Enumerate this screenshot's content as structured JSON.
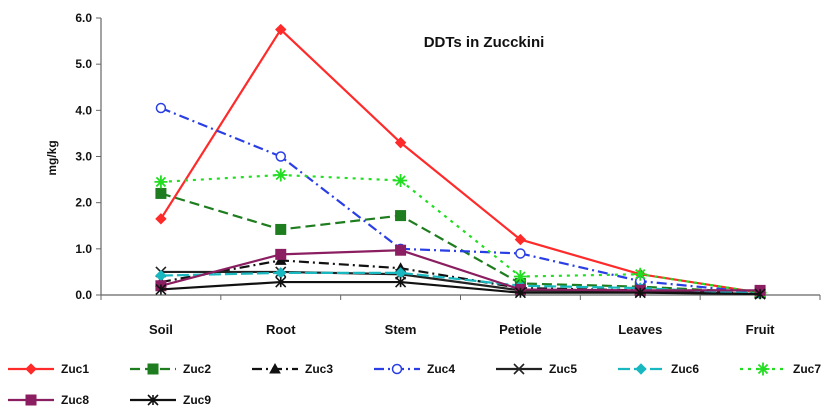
{
  "chart_data": {
    "type": "line",
    "title": "DDTs in Zucckini",
    "xlabel": "",
    "ylabel": "mg/kg",
    "ylim": [
      0,
      6
    ],
    "yticks": [
      "0.0",
      "1.0",
      "2.0",
      "3.0",
      "4.0",
      "5.0",
      "6.0"
    ],
    "categories": [
      "Soil",
      "Root",
      "Stem",
      "Petiole",
      "Leaves",
      "Fruit"
    ],
    "grid": false,
    "legend": "bottom",
    "series": [
      {
        "name": "Zuc1",
        "color": "#ff2a2a",
        "dash": "",
        "marker": "diamond",
        "values": [
          1.65,
          5.75,
          3.3,
          1.2,
          0.45,
          0.05
        ]
      },
      {
        "name": "Zuc2",
        "color": "#1e7d1e",
        "dash": "10,5",
        "marker": "square",
        "values": [
          2.2,
          1.42,
          1.72,
          0.25,
          0.18,
          0.05
        ]
      },
      {
        "name": "Zuc3",
        "color": "#111111",
        "dash": "10,4,2,4",
        "marker": "triangle",
        "values": [
          0.28,
          0.75,
          0.58,
          0.15,
          0.1,
          0.03
        ]
      },
      {
        "name": "Zuc4",
        "color": "#2a3ee6",
        "dash": "10,4,2,4",
        "marker": "circle",
        "values": [
          4.05,
          3.0,
          1.0,
          0.9,
          0.3,
          0.05
        ]
      },
      {
        "name": "Zuc5",
        "color": "#222222",
        "dash": "",
        "marker": "x",
        "values": [
          0.5,
          0.5,
          0.45,
          0.1,
          0.08,
          0.02
        ]
      },
      {
        "name": "Zuc6",
        "color": "#19b8c0",
        "dash": "12,4",
        "marker": "diamond",
        "values": [
          0.42,
          0.48,
          0.48,
          0.2,
          0.15,
          0.03
        ]
      },
      {
        "name": "Zuc7",
        "color": "#22dd22",
        "dash": "3,5",
        "marker": "star",
        "values": [
          2.45,
          2.6,
          2.48,
          0.4,
          0.45,
          0.05
        ]
      },
      {
        "name": "Zuc8",
        "color": "#8b1e60",
        "dash": "",
        "marker": "square",
        "values": [
          0.2,
          0.88,
          0.97,
          0.12,
          0.1,
          0.1
        ]
      },
      {
        "name": "Zuc9",
        "color": "#111111",
        "dash": "",
        "marker": "asterisk",
        "values": [
          0.12,
          0.28,
          0.28,
          0.05,
          0.05,
          0.02
        ]
      }
    ]
  }
}
